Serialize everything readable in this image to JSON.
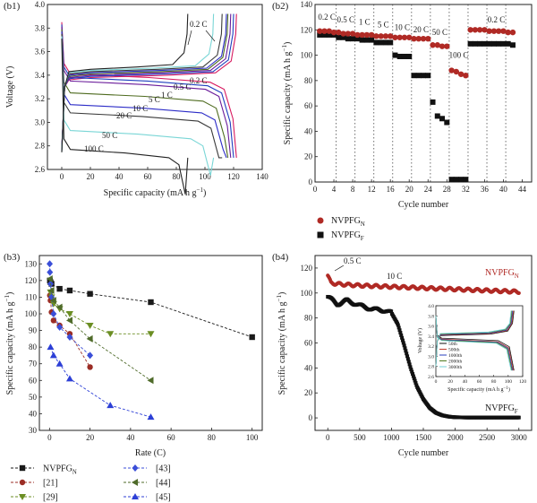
{
  "chart_data": [
    {
      "panel": "(b1)",
      "type": "line",
      "xlabel": "Specific capacity (mA h g",
      "xlabel_sup": "−1",
      "xlabel_end": ")",
      "ylabel": "Voltage (V)",
      "xlim": [
        -10,
        140
      ],
      "ylim": [
        2.6,
        4.0
      ],
      "xticks": [
        0,
        20,
        40,
        60,
        80,
        100,
        120,
        140
      ],
      "yticks": [
        2.6,
        2.8,
        3.0,
        3.2,
        3.4,
        3.6,
        3.8,
        4.0
      ],
      "curve_labels": [
        "0.2 C",
        "0.2 C",
        "0.5 C",
        "1 C",
        "5 C",
        "10 C",
        "20 C",
        "50 C",
        "100 C"
      ],
      "series": [
        {
          "name": "0.2 C",
          "color": "#d81b60",
          "capacity": 122,
          "charge_plateau": 3.4,
          "discharge_plateau": 3.38
        },
        {
          "name": "0.5 C",
          "color": "#1f3fbf",
          "capacity": 120,
          "charge_plateau": 3.41,
          "discharge_plateau": 3.35
        },
        {
          "name": "1 C",
          "color": "#6a1b9a",
          "capacity": 118,
          "charge_plateau": 3.42,
          "discharge_plateau": 3.32
        },
        {
          "name": "5 C",
          "color": "#4e6b1f",
          "capacity": 116,
          "charge_plateau": 3.43,
          "discharge_plateau": 3.22
        },
        {
          "name": "10 C",
          "color": "#2c2cc7",
          "capacity": 115,
          "charge_plateau": 3.44,
          "discharge_plateau": 3.12
        },
        {
          "name": "20 C",
          "color": "#3a3a3a",
          "capacity": 112,
          "charge_plateau": 3.45,
          "discharge_plateau": 3.05
        },
        {
          "name": "50 C",
          "color": "#7ad6d6",
          "capacity": 106,
          "charge_plateau": 3.46,
          "discharge_plateau": 2.9
        },
        {
          "name": "100 C",
          "color": "#222222",
          "capacity": 88,
          "charge_plateau": 3.47,
          "discharge_plateau": 2.74
        }
      ]
    },
    {
      "panel": "(b2)",
      "type": "scatter",
      "xlabel": "Cycle number",
      "ylabel": "Specific capacity (mA h g",
      "ylabel_sup": "−1",
      "ylabel_end": ")",
      "xlim": [
        0,
        46
      ],
      "ylim": [
        0,
        140
      ],
      "xticks": [
        0,
        4,
        8,
        12,
        16,
        20,
        24,
        28,
        32,
        36,
        40,
        44
      ],
      "yticks": [
        0,
        20,
        40,
        60,
        80,
        100,
        120,
        140
      ],
      "rate_labels": [
        "0.2 C",
        "0.5 C",
        "1 C",
        "5 C",
        "10 C",
        "20 C",
        "50 C",
        "100 C",
        "0.2 C"
      ],
      "legend": [
        {
          "name": "NVPFG",
          "sub": "N",
          "marker": "circle",
          "color": "#b02a25"
        },
        {
          "name": "NVPFG",
          "sub": "F",
          "marker": "square",
          "color": "#111111"
        }
      ],
      "series": [
        {
          "name": "NVPFG_N",
          "x": [
            1,
            2,
            3,
            4,
            5,
            6,
            7,
            8,
            9,
            10,
            11,
            12,
            13,
            14,
            15,
            16,
            17,
            18,
            19,
            20,
            21,
            22,
            23,
            24,
            25,
            26,
            27,
            28,
            29,
            30,
            31,
            32,
            33,
            34,
            35,
            36,
            37,
            38,
            39,
            40,
            41,
            42
          ],
          "values": [
            119,
            119,
            119,
            118,
            118,
            117,
            117,
            117,
            116,
            116,
            116,
            116,
            115,
            115,
            115,
            115,
            114,
            114,
            114,
            114,
            113,
            113,
            113,
            113,
            108,
            108,
            107,
            107,
            88,
            87,
            85,
            84,
            120,
            120,
            120,
            120,
            119,
            119,
            119,
            119,
            118,
            118
          ]
        },
        {
          "name": "NVPFG_F",
          "x": [
            1,
            2,
            3,
            4,
            5,
            6,
            7,
            8,
            9,
            10,
            11,
            12,
            13,
            14,
            15,
            16,
            17,
            18,
            19,
            20,
            21,
            22,
            23,
            24,
            25,
            26,
            27,
            28,
            29,
            30,
            31,
            32,
            33,
            34,
            35,
            36,
            37,
            38,
            39,
            40,
            41,
            42
          ],
          "values": [
            116,
            116,
            116,
            116,
            114,
            114,
            113,
            113,
            113,
            112,
            112,
            112,
            110,
            110,
            110,
            110,
            100,
            99,
            99,
            99,
            84,
            84,
            84,
            84,
            63,
            52,
            50,
            47,
            2,
            2,
            2,
            2,
            109,
            109,
            109,
            109,
            109,
            109,
            109,
            109,
            109,
            108
          ]
        }
      ]
    },
    {
      "panel": "(b3)",
      "type": "line",
      "xlabel": "Rate (C)",
      "ylabel": "Specific capacity (mA h g",
      "ylabel_sup": "−1",
      "ylabel_end": ")",
      "xlim": [
        -5,
        105
      ],
      "ylim": [
        30,
        135
      ],
      "xticks": [
        0,
        20,
        40,
        60,
        80,
        100
      ],
      "yticks": [
        30,
        40,
        50,
        60,
        70,
        80,
        90,
        100,
        110,
        120,
        130
      ],
      "legend": [
        {
          "name": "NVPFG",
          "sub": "N",
          "marker": "square",
          "color": "#1a1a1a"
        },
        {
          "name": "[43]",
          "sub": "",
          "marker": "diamond",
          "color": "#3b4fd8"
        },
        {
          "name": "[21]",
          "sub": "",
          "marker": "circle",
          "color": "#9b2d25"
        },
        {
          "name": "[44]",
          "sub": "",
          "marker": "tri-left",
          "color": "#4f6b2a"
        },
        {
          "name": "[29]",
          "sub": "",
          "marker": "tri-down",
          "color": "#6b8e23"
        },
        {
          "name": "[45]",
          "sub": "",
          "marker": "tri-up",
          "color": "#2c3fd6"
        }
      ],
      "series": [
        {
          "name": "NVPFG_N",
          "x": [
            0.2,
            0.5,
            1,
            5,
            10,
            20,
            50,
            100
          ],
          "values": [
            120,
            119,
            118,
            115,
            114,
            112,
            107,
            86
          ]
        },
        {
          "name": "[21]",
          "x": [
            0.2,
            0.5,
            1,
            2,
            5,
            10,
            20
          ],
          "values": [
            111,
            108,
            101,
            96,
            93,
            88,
            68
          ]
        },
        {
          "name": "[29]",
          "x": [
            0.5,
            1,
            2,
            5,
            10,
            20,
            30,
            50
          ],
          "values": [
            113,
            110,
            106,
            103,
            100,
            93,
            88,
            88
          ]
        },
        {
          "name": "[43]",
          "x": [
            0.1,
            0.2,
            0.5,
            1,
            2,
            5,
            10,
            20
          ],
          "values": [
            130,
            125,
            118,
            110,
            100,
            92,
            86,
            75
          ]
        },
        {
          "name": "[44]",
          "x": [
            0.2,
            1,
            2,
            5,
            10,
            20,
            50
          ],
          "values": [
            121,
            114,
            108,
            104,
            96,
            85,
            60
          ]
        },
        {
          "name": "[45]",
          "x": [
            0.5,
            2,
            5,
            10,
            30,
            50
          ],
          "values": [
            80,
            75,
            70,
            61,
            45,
            38
          ]
        }
      ]
    },
    {
      "panel": "(b4)",
      "type": "scatter",
      "xlabel": "Cycle number",
      "ylabel": "Specific capacity (mA h g",
      "ylabel_sup": "−1",
      "ylabel_end": ")",
      "xlim": [
        -200,
        3200
      ],
      "ylim": [
        -10,
        130
      ],
      "xticks": [
        0,
        500,
        1000,
        1500,
        2000,
        2500,
        3000
      ],
      "yticks": [
        0,
        20,
        40,
        60,
        80,
        100,
        120
      ],
      "annotations": [
        "0.5 C",
        "10 C"
      ],
      "series_labels": [
        {
          "name": "NVPFG",
          "sub": "N",
          "color": "#b02a25"
        },
        {
          "name": "NVPFG",
          "sub": "F",
          "color": "#111111"
        }
      ],
      "series": [
        {
          "name": "NVPFG_N",
          "x": [
            0,
            50,
            200,
            500,
            1000,
            1500,
            2000,
            2500,
            3000
          ],
          "values": [
            114,
            108,
            107,
            106,
            105,
            104,
            103,
            102,
            101
          ]
        },
        {
          "name": "NVPFG_F",
          "x": [
            0,
            50,
            150,
            300,
            500,
            700,
            900,
            1000,
            1100,
            1200,
            1300,
            1400,
            1500,
            1600,
            1700,
            1800,
            1900,
            2000,
            2200,
            2500,
            3000
          ],
          "values": [
            97,
            95,
            91,
            94,
            90,
            87,
            86,
            84,
            75,
            58,
            40,
            25,
            15,
            8,
            4,
            2,
            1,
            0.5,
            0.3,
            0.3,
            0.3
          ]
        }
      ],
      "inset": {
        "xlabel": "Specific capacity (mA h g",
        "xlabel_sup": "−1",
        "xlabel_end": ")",
        "ylabel": "Voltage (V)",
        "xlim": [
          0,
          120
        ],
        "ylim": [
          2.6,
          4.0
        ],
        "xticks": [
          0,
          20,
          40,
          60,
          80,
          100,
          120
        ],
        "yticks": [
          2.6,
          2.8,
          3.0,
          3.2,
          3.4,
          3.6,
          3.8,
          4.0
        ],
        "legend": [
          "50th",
          "500th",
          "1000th",
          "2000th",
          "3000th"
        ],
        "series": [
          {
            "name": "50th",
            "color": "#111111",
            "capacity": 108,
            "charge_plateau": 3.44,
            "discharge_plateau": 3.34
          },
          {
            "name": "500th",
            "color": "#c0392b",
            "capacity": 107,
            "charge_plateau": 3.45,
            "discharge_plateau": 3.32
          },
          {
            "name": "1000th",
            "color": "#2a3fbf",
            "capacity": 106,
            "charge_plateau": 3.46,
            "discharge_plateau": 3.31
          },
          {
            "name": "2000th",
            "color": "#4f7a1f",
            "capacity": 105,
            "charge_plateau": 3.47,
            "discharge_plateau": 3.3
          },
          {
            "name": "3000th",
            "color": "#6fcfd6",
            "capacity": 104,
            "charge_plateau": 3.48,
            "discharge_plateau": 3.29
          }
        ]
      }
    }
  ]
}
